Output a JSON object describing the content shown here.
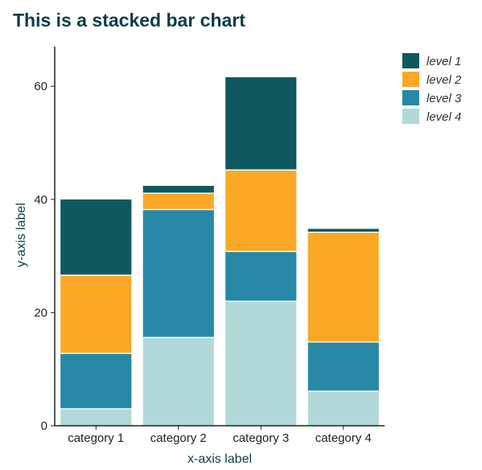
{
  "chart_data": {
    "type": "bar",
    "stacked": true,
    "title": "This is a stacked bar chart",
    "xlabel": "x-axis label",
    "ylabel": "y-axis label",
    "ylim": [
      0,
      67
    ],
    "yticks": [
      0,
      20,
      40,
      60
    ],
    "grid": false,
    "legend_position": "top-right",
    "categories": [
      "category 1",
      "category 2",
      "category 3",
      "category 4"
    ],
    "series": [
      {
        "name": "level 4",
        "color": "#b2d8d9",
        "values": [
          3.0,
          15.6,
          22.0,
          6.1
        ]
      },
      {
        "name": "level 3",
        "color": "#2888a8",
        "values": [
          9.8,
          22.6,
          8.8,
          8.7
        ]
      },
      {
        "name": "level 2",
        "color": "#fba826",
        "values": [
          13.8,
          2.9,
          14.4,
          19.4
        ]
      },
      {
        "name": "level 1",
        "color": "#0e5960",
        "values": [
          13.4,
          1.3,
          16.4,
          0.6
        ]
      }
    ],
    "legend_order": [
      "level 1",
      "level 2",
      "level 3",
      "level 4"
    ]
  }
}
